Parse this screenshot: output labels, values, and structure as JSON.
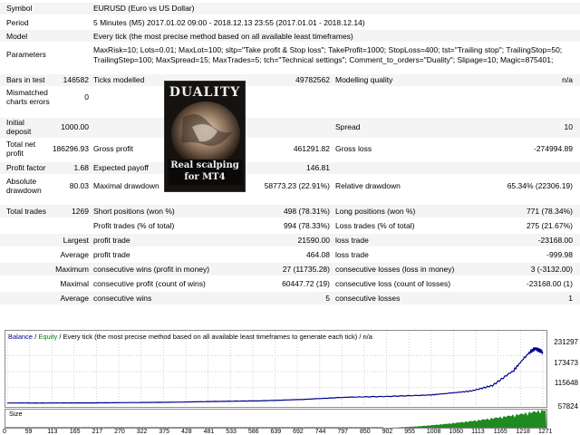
{
  "header": {
    "symbol_label": "Symbol",
    "symbol_value": "EURUSD (Euro vs US Dollar)",
    "period_label": "Period",
    "period_value": "5 Minutes (M5) 2017.01.02 09:00 - 2018.12.13 23:55 (2017.01.01 - 2018.12.14)",
    "model_label": "Model",
    "model_value": "Every tick (the most precise method based on all available least timeframes)",
    "params_label": "Parameters",
    "params_line1": "MaxRisk=10; Lots=0.01; MaxLot=100; sltp=\"Take profit & Stop loss\"; TakeProfit=1000; StopLoss=400; tst=\"Trailing stop\"; TrailingStop=50;",
    "params_line2": "TrailingStep=100; MaxSpread=15; MaxTrades=5; tch=\"Technical settings\"; Comment_to_orders=\"Duality\"; Slipage=10; Magic=875401;"
  },
  "stats": {
    "bars_label": "Bars in test",
    "bars_value": "146582",
    "ticks_label": "Ticks modelled",
    "ticks_value": "49782562",
    "quality_label": "Modelling quality",
    "quality_value": "n/a",
    "mismatch_label1": "Mismatched",
    "mismatch_label2": "charts errors",
    "mismatch_value": "0",
    "deposit_label1": "Initial",
    "deposit_label2": "deposit",
    "deposit_value": "1000.00",
    "spread_label": "Spread",
    "spread_value": "10",
    "netprofit_label1": "Total net",
    "netprofit_label2": "profit",
    "netprofit_value": "186296.93",
    "grossprofit_label": "Gross profit",
    "grossprofit_value": "461291.82",
    "grossloss_label": "Gross loss",
    "grossloss_value": "-274994.89",
    "pf_label": "Profit factor",
    "pf_value": "1.68",
    "ep_label": "Expected payoff",
    "ep_value": "146.81",
    "absdd_label1": "Absolute",
    "absdd_label2": "drawdown",
    "absdd_value": "80.03",
    "maxdd_label": "Maximal drawdown",
    "maxdd_value": "58773.23 (22.91%)",
    "reldd_label": "Relative drawdown",
    "reldd_value": "65.34% (22306.19)",
    "trades_label": "Total trades",
    "trades_value": "1269",
    "short_label": "Short positions (won %)",
    "short_value": "498 (78.31%)",
    "long_label": "Long positions (won %)",
    "long_value": "771 (78.34%)",
    "pt_label": "Profit trades (% of total)",
    "pt_value": "994 (78.33%)",
    "lt_label": "Loss trades (% of total)",
    "lt_value": "275 (21.67%)",
    "largest_label": "Largest",
    "largest_pt_label": "profit trade",
    "largest_pt_value": "21590.00",
    "largest_lt_label": "loss trade",
    "largest_lt_value": "-23168.00",
    "average_label": "Average",
    "avg_pt_label": "profit trade",
    "avg_pt_value": "464.08",
    "avg_lt_label": "loss trade",
    "avg_lt_value": "-999.98",
    "maximum_label": "Maximum",
    "max_wins_label": "consecutive wins (profit in money)",
    "max_wins_value": "27 (11735.28)",
    "max_losses_label": "consecutive losses (loss in money)",
    "max_losses_value": "3 (-3132.00)",
    "maximal_label": "Maximal",
    "maximal_profit_label": "consecutive profit (count of wins)",
    "maximal_profit_value": "60447.72 (19)",
    "maximal_loss_label": "consecutive loss (count of losses)",
    "maximal_loss_value": "-23168.00 (1)",
    "avg2_label": "Average",
    "avg_cw_label": "consecutive wins",
    "avg_cw_value": "5",
    "avg_cl_label": "consecutive losses",
    "avg_cl_value": "1"
  },
  "logo": {
    "line1": "DUALITY",
    "line2": "Real scalping",
    "line3": "for MT4"
  },
  "chart_header": {
    "balance": "Balance",
    "sep1": " / ",
    "equity": "Equity",
    "sep2": " / ",
    "rest": "Every tick (the most precise method based on all available least timeframes to generate each tick)",
    "sep3": " / ",
    "tail": "n/a",
    "balance_color": "#00008b",
    "equity_color": "#008000"
  },
  "size_label": "Size",
  "chart_data": {
    "type": "line",
    "series": [
      {
        "name": "Balance",
        "x": [
          0,
          100,
          200,
          300,
          400,
          500,
          600,
          700,
          800,
          900,
          1000,
          1050,
          1100,
          1150,
          1200,
          1230,
          1250,
          1269
        ],
        "values": [
          1000,
          1100,
          1500,
          2500,
          4000,
          7000,
          9000,
          14000,
          22000,
          25000,
          30000,
          37000,
          45000,
          65000,
          120000,
          175000,
          200000,
          187297
        ]
      }
    ],
    "yticks": [
      "231297",
      "173473",
      "115648",
      "57824",
      "0"
    ],
    "ylim": [
      0,
      231297
    ],
    "xlim": [
      0,
      1269
    ],
    "xticks": [
      "0",
      "59",
      "113",
      "165",
      "217",
      "270",
      "322",
      "375",
      "428",
      "481",
      "533",
      "586",
      "639",
      "692",
      "744",
      "797",
      "850",
      "902",
      "955",
      "1008",
      "1060",
      "1113",
      "1165",
      "1218",
      "1271"
    ]
  }
}
